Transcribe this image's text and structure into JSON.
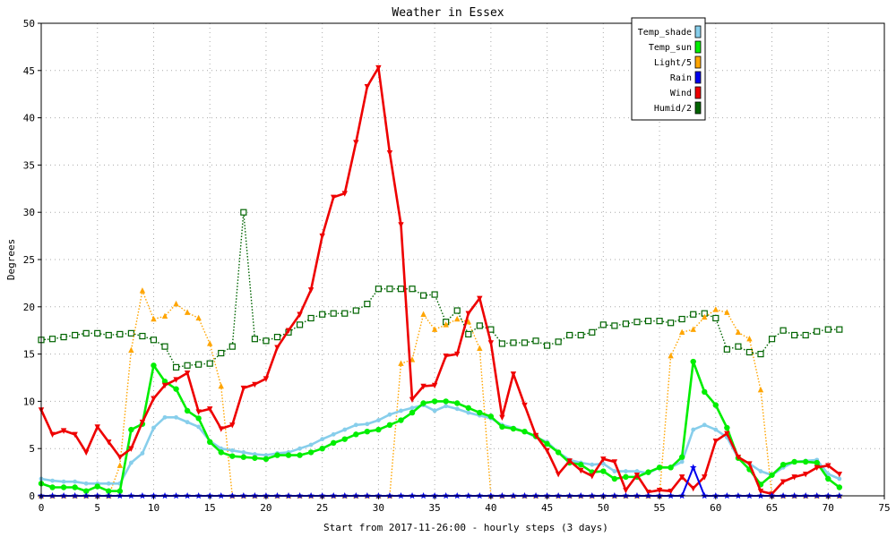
{
  "chart_data": {
    "type": "line",
    "title": "Weather in Essex",
    "xlabel": "Start from 2017-11-26:00 - hourly steps (3 days)",
    "ylabel": "Degrees",
    "xlim": [
      0,
      75
    ],
    "ylim": [
      0,
      50
    ],
    "xticks": [
      0,
      5,
      10,
      15,
      20,
      25,
      30,
      35,
      40,
      45,
      50,
      55,
      60,
      65,
      70,
      75
    ],
    "yticks": [
      0,
      5,
      10,
      15,
      20,
      25,
      30,
      35,
      40,
      45,
      50
    ],
    "grid": true,
    "legend_position": "top-right",
    "series": [
      {
        "name": "Temp_shade",
        "color": "#87ceeb",
        "marker": "dot",
        "line": "solid",
        "values": [
          1.8,
          1.6,
          1.5,
          1.5,
          1.3,
          1.3,
          1.3,
          1.3,
          3.5,
          4.5,
          7.2,
          8.3,
          8.3,
          7.8,
          7.3,
          5.8,
          5.0,
          4.8,
          4.6,
          4.4,
          4.3,
          4.5,
          4.6,
          5.0,
          5.4,
          6.0,
          6.5,
          7.0,
          7.5,
          7.6,
          8.0,
          8.6,
          9.0,
          9.3,
          9.6,
          9.0,
          9.5,
          9.2,
          8.8,
          8.5,
          8.2,
          7.5,
          7.2,
          6.8,
          6.2,
          5.7,
          4.6,
          3.8,
          3.5,
          3.3,
          3.4,
          2.6,
          2.6,
          2.6,
          2.4,
          3.0,
          3.0,
          3.6,
          7.0,
          7.5,
          7.0,
          6.2,
          4.0,
          3.4,
          2.6,
          2.2,
          3.0,
          3.6,
          3.7,
          3.8,
          2.3,
          1.8
        ]
      },
      {
        "name": "Temp_sun",
        "color": "#00ee00",
        "marker": "circle",
        "line": "solid",
        "values": [
          1.3,
          0.9,
          0.9,
          0.9,
          0.5,
          1.0,
          0.5,
          0.5,
          7.0,
          7.6,
          13.8,
          12.1,
          11.3,
          9.0,
          8.2,
          5.7,
          4.6,
          4.2,
          4.1,
          4.0,
          3.9,
          4.3,
          4.3,
          4.3,
          4.6,
          5.0,
          5.6,
          6.0,
          6.5,
          6.8,
          7.0,
          7.5,
          8.0,
          8.8,
          9.8,
          10.0,
          10.0,
          9.8,
          9.3,
          8.8,
          8.4,
          7.3,
          7.1,
          6.8,
          6.3,
          5.5,
          4.6,
          3.5,
          3.3,
          2.5,
          2.6,
          1.8,
          2.0,
          2.0,
          2.5,
          3.0,
          3.0,
          4.1,
          14.2,
          11.0,
          9.6,
          7.2,
          4.0,
          2.8,
          1.2,
          2.2,
          3.3,
          3.6,
          3.6,
          3.5,
          1.8,
          0.9
        ]
      },
      {
        "name": "Light/5",
        "color": "#ffa500",
        "marker": "triangle",
        "line": "dotted",
        "values": [
          0,
          0,
          0,
          0,
          0,
          0,
          0,
          3.2,
          15.4,
          21.7,
          18.7,
          19.0,
          20.3,
          19.4,
          18.8,
          16.1,
          11.6,
          0,
          0,
          0,
          0,
          0,
          0,
          0,
          0,
          0,
          0,
          0,
          0,
          0,
          0,
          0,
          14.0,
          14.4,
          19.2,
          17.6,
          18.1,
          18.7,
          18.4,
          15.6,
          0,
          0,
          0,
          0,
          0,
          0,
          0,
          0,
          0,
          0,
          0,
          0,
          0,
          0,
          0,
          0,
          14.8,
          17.3,
          17.6,
          18.9,
          19.7,
          19.4,
          17.3,
          16.6,
          11.2,
          0,
          0,
          0,
          0,
          0,
          0,
          0
        ]
      },
      {
        "name": "Rain",
        "color": "#0000ee",
        "marker": "star",
        "line": "solid",
        "values": [
          0,
          0,
          0,
          0,
          0,
          0,
          0,
          0,
          0,
          0,
          0,
          0,
          0,
          0,
          0,
          0,
          0,
          0,
          0,
          0,
          0,
          0,
          0,
          0,
          0,
          0,
          0,
          0,
          0,
          0,
          0,
          0,
          0,
          0,
          0,
          0,
          0,
          0,
          0,
          0,
          0,
          0,
          0,
          0,
          0,
          0,
          0,
          0,
          0,
          0,
          0,
          0,
          0,
          0,
          0,
          0,
          0,
          0,
          3.0,
          0,
          0,
          0,
          0,
          0,
          0,
          0,
          0,
          0,
          0,
          0,
          0,
          0
        ]
      },
      {
        "name": "Wind",
        "color": "#ee0000",
        "marker": "down-triangle",
        "line": "solid",
        "values": [
          9.1,
          6.5,
          6.9,
          6.5,
          4.6,
          7.3,
          5.7,
          4.1,
          5.0,
          7.8,
          10.3,
          11.7,
          12.3,
          13.0,
          8.9,
          9.2,
          7.1,
          7.5,
          11.4,
          11.8,
          12.4,
          15.7,
          17.5,
          19.2,
          21.8,
          27.5,
          31.6,
          32.0,
          37.4,
          43.3,
          45.3,
          36.3,
          28.7,
          10.2,
          11.6,
          11.7,
          14.8,
          15.0,
          19.3,
          20.9,
          16.2,
          8.3,
          12.9,
          9.6,
          6.4,
          4.8,
          2.3,
          3.7,
          2.7,
          2.1,
          3.9,
          3.6,
          0.6,
          2.2,
          0.4,
          0.6,
          0.5,
          2.0,
          0.8,
          2.0,
          5.8,
          6.6,
          4.1,
          3.4,
          0.5,
          0.2,
          1.5,
          2.0,
          2.3,
          3.0,
          3.2,
          2.3
        ]
      },
      {
        "name": "Humid/2",
        "color": "#006400",
        "marker": "square",
        "line": "dotted",
        "values": [
          16.5,
          16.6,
          16.8,
          17.0,
          17.2,
          17.2,
          17.0,
          17.1,
          17.2,
          16.9,
          16.5,
          15.8,
          13.6,
          13.8,
          13.9,
          14.0,
          15.1,
          15.8,
          30.0,
          16.6,
          16.4,
          16.8,
          17.3,
          18.1,
          18.8,
          19.2,
          19.3,
          19.3,
          19.6,
          20.3,
          21.9,
          21.9,
          21.9,
          21.9,
          21.2,
          21.3,
          18.4,
          19.6,
          17.1,
          18.0,
          17.6,
          16.1,
          16.2,
          16.2,
          16.4,
          15.9,
          16.3,
          17.0,
          17.0,
          17.3,
          18.1,
          18.0,
          18.2,
          18.4,
          18.5,
          18.5,
          18.3,
          18.7,
          19.2,
          19.3,
          18.8,
          15.5,
          15.8,
          15.2,
          15.0,
          16.6,
          17.5,
          17.0,
          17.0,
          17.4,
          17.6,
          17.6
        ]
      }
    ]
  }
}
